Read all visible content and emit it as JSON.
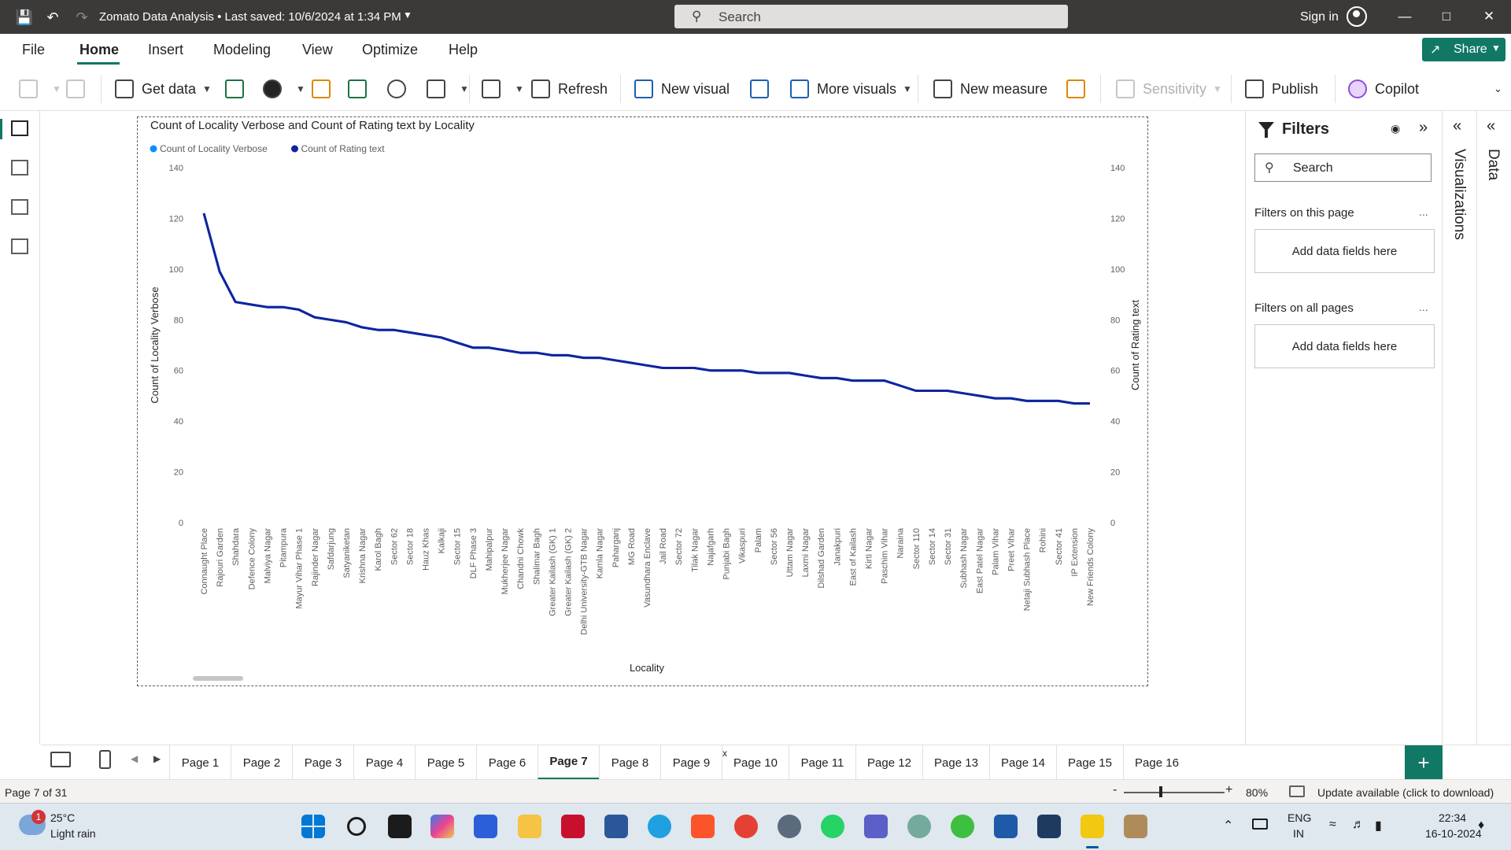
{
  "window": {
    "title": "Zomato Data Analysis • Last saved: 10/6/2024 at 1:34 PM",
    "search_placeholder": "Search",
    "sign_in": "Sign in"
  },
  "menu": {
    "tabs": [
      "File",
      "Home",
      "Insert",
      "Modeling",
      "View",
      "Optimize",
      "Help"
    ],
    "active_tab": "Home",
    "share_label": "Share"
  },
  "ribbon": {
    "get_data": "Get data",
    "refresh": "Refresh",
    "new_visual": "New visual",
    "more_visuals": "More visuals",
    "new_measure": "New measure",
    "sensitivity": "Sensitivity",
    "publish": "Publish",
    "copilot": "Copilot"
  },
  "filters": {
    "title": "Filters",
    "search_placeholder": "Search",
    "on_this_page": "Filters on this page",
    "on_all_pages": "Filters on all pages",
    "add_fields": "Add data fields here",
    "more": "..."
  },
  "side_panes": {
    "visualizations": "Visualizations",
    "data": "Data"
  },
  "pages": {
    "tabs": [
      "Page 1",
      "Page 2",
      "Page 3",
      "Page 4",
      "Page 5",
      "Page 6",
      "Page 7",
      "Page 8",
      "Page 9",
      "Page 10",
      "Page 11",
      "Page 12",
      "Page 13",
      "Page 14",
      "Page 15",
      "Page 16"
    ],
    "active": "Page 7",
    "close_glyph": "x",
    "add_glyph": "+"
  },
  "status": {
    "page_indicator": "Page 7 of 31",
    "zoom": "80%",
    "zoom_minus": "-",
    "zoom_plus": "+",
    "update": "Update available (click to download)"
  },
  "taskbar": {
    "weather_badge": "1",
    "temperature": "25°C",
    "weather_desc": "Light rain",
    "lang_top": "ENG",
    "lang_bottom": "IN",
    "time": "22:34",
    "date": "16-10-2024"
  },
  "colors": {
    "accent": "#117865",
    "series_verbose": "#118dff",
    "series_rating": "#12239e"
  },
  "chart_data": {
    "type": "line",
    "title": "Count of Locality Verbose and Count of Rating text by Locality",
    "xlabel": "Locality",
    "ylabel": "Count of Locality Verbose",
    "y2label": "Count of Rating text",
    "ylim": [
      0,
      140
    ],
    "yticks": [
      0,
      20,
      40,
      60,
      80,
      100,
      120,
      140
    ],
    "legend_position": "top-left",
    "grid": false,
    "categories": [
      "Connaught Place",
      "Rajouri Garden",
      "Shahdara",
      "Defence Colony",
      "Malviya Nagar",
      "Pitampura",
      "Mayur Vihar Phase 1",
      "Rajinder Nagar",
      "Safdarjung",
      "Satyaniketan",
      "Krishna Nagar",
      "Karol Bagh",
      "Sector 62",
      "Sector 18",
      "Hauz Khas",
      "Kalkaji",
      "Sector 15",
      "DLF Phase 3",
      "Mahipalpur",
      "Mukherjee Nagar",
      "Chandni Chowk",
      "Shalimar Bagh",
      "Greater Kailash (GK) 1",
      "Greater Kailash (GK) 2",
      "Delhi University-GTB Nagar",
      "Kamla Nagar",
      "Paharganj",
      "MG Road",
      "Vasundhara Enclave",
      "Jail Road",
      "Sector 72",
      "Tilak Nagar",
      "Najafgarh",
      "Punjabi Bagh",
      "Vikaspuri",
      "Palam",
      "Sector 56",
      "Uttam Nagar",
      "Laxmi Nagar",
      "Dilshad Garden",
      "Janakpuri",
      "East of Kailash",
      "Kirti Nagar",
      "Paschim Vihar",
      "Naraina",
      "Sector 110",
      "Sector 14",
      "Sector 31",
      "Subhash Nagar",
      "East Patel Nagar",
      "Palam Vihar",
      "Preet Vihar",
      "Netaji Subhash Place",
      "Rohini",
      "Sector 41",
      "IP Extension",
      "New Friends Colony"
    ],
    "series": [
      {
        "name": "Count of Locality Verbose",
        "color": "#118dff",
        "values": [
          122,
          99,
          87,
          86,
          85,
          85,
          84,
          81,
          80,
          79,
          77,
          76,
          76,
          75,
          74,
          73,
          71,
          69,
          69,
          68,
          67,
          67,
          66,
          66,
          65,
          65,
          64,
          63,
          62,
          61,
          61,
          61,
          60,
          60,
          60,
          59,
          59,
          59,
          58,
          57,
          57,
          56,
          56,
          56,
          54,
          52,
          52,
          52,
          51,
          50,
          49,
          49,
          48,
          48,
          48,
          47,
          47
        ]
      },
      {
        "name": "Count of Rating text",
        "color": "#12239e",
        "values": [
          122,
          99,
          87,
          86,
          85,
          85,
          84,
          81,
          80,
          79,
          77,
          76,
          76,
          75,
          74,
          73,
          71,
          69,
          69,
          68,
          67,
          67,
          66,
          66,
          65,
          65,
          64,
          63,
          62,
          61,
          61,
          61,
          60,
          60,
          60,
          59,
          59,
          59,
          58,
          57,
          57,
          56,
          56,
          56,
          54,
          52,
          52,
          52,
          51,
          50,
          49,
          49,
          48,
          48,
          48,
          47,
          47
        ]
      }
    ]
  }
}
